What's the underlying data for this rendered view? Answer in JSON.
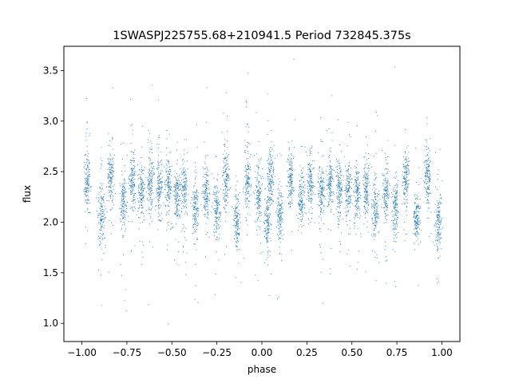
{
  "chart_data": {
    "type": "scatter",
    "title": "1SWASPJ225755.68+210941.5 Period 732845.375s",
    "xlabel": "phase",
    "ylabel": "flux",
    "xlim": [
      -1.1,
      1.1
    ],
    "ylim": [
      0.82,
      3.74
    ],
    "x_ticks": [
      -1.0,
      -0.75,
      -0.5,
      -0.25,
      0.0,
      0.25,
      0.5,
      0.75,
      1.0
    ],
    "x_tick_labels": [
      "−1.00",
      "−0.75",
      "−0.50",
      "−0.25",
      "0.00",
      "0.25",
      "0.50",
      "0.75",
      "1.00"
    ],
    "y_ticks": [
      1.0,
      1.5,
      2.0,
      2.5,
      3.0,
      3.5
    ],
    "y_tick_labels": [
      "1.0",
      "1.5",
      "2.0",
      "2.5",
      "3.0",
      "3.5"
    ],
    "grid": false,
    "point_color": "#1f77b4",
    "series": [
      {
        "clusters": [
          {
            "x": -0.97,
            "y": 2.42
          },
          {
            "x": -0.89,
            "y": 2.08
          },
          {
            "x": -0.84,
            "y": 2.43
          },
          {
            "x": -0.77,
            "y": 2.22
          },
          {
            "x": -0.72,
            "y": 2.39
          },
          {
            "x": -0.67,
            "y": 2.3
          },
          {
            "x": -0.62,
            "y": 2.38
          },
          {
            "x": -0.57,
            "y": 2.32
          },
          {
            "x": -0.52,
            "y": 2.34
          },
          {
            "x": -0.47,
            "y": 2.28
          },
          {
            "x": -0.43,
            "y": 2.33
          },
          {
            "x": -0.37,
            "y": 2.13
          },
          {
            "x": -0.31,
            "y": 2.27
          },
          {
            "x": -0.25,
            "y": 2.12
          },
          {
            "x": -0.2,
            "y": 2.45
          },
          {
            "x": -0.14,
            "y": 2.03
          },
          {
            "x": -0.08,
            "y": 2.42
          },
          {
            "x": -0.02,
            "y": 2.25
          },
          {
            "x": 0.03,
            "y": 2.0
          },
          {
            "x": 0.05,
            "y": 2.45
          },
          {
            "x": 0.1,
            "y": 2.08
          },
          {
            "x": 0.16,
            "y": 2.42
          },
          {
            "x": 0.22,
            "y": 2.22
          },
          {
            "x": 0.27,
            "y": 2.38
          },
          {
            "x": 0.33,
            "y": 2.3
          },
          {
            "x": 0.38,
            "y": 2.38
          },
          {
            "x": 0.43,
            "y": 2.3
          },
          {
            "x": 0.48,
            "y": 2.34
          },
          {
            "x": 0.53,
            "y": 2.27
          },
          {
            "x": 0.58,
            "y": 2.33
          },
          {
            "x": 0.63,
            "y": 2.13
          },
          {
            "x": 0.69,
            "y": 2.27
          },
          {
            "x": 0.74,
            "y": 2.12
          },
          {
            "x": 0.8,
            "y": 2.45
          },
          {
            "x": 0.86,
            "y": 2.03
          },
          {
            "x": 0.92,
            "y": 2.42
          },
          {
            "x": 0.98,
            "y": 2.0
          }
        ]
      }
    ]
  }
}
